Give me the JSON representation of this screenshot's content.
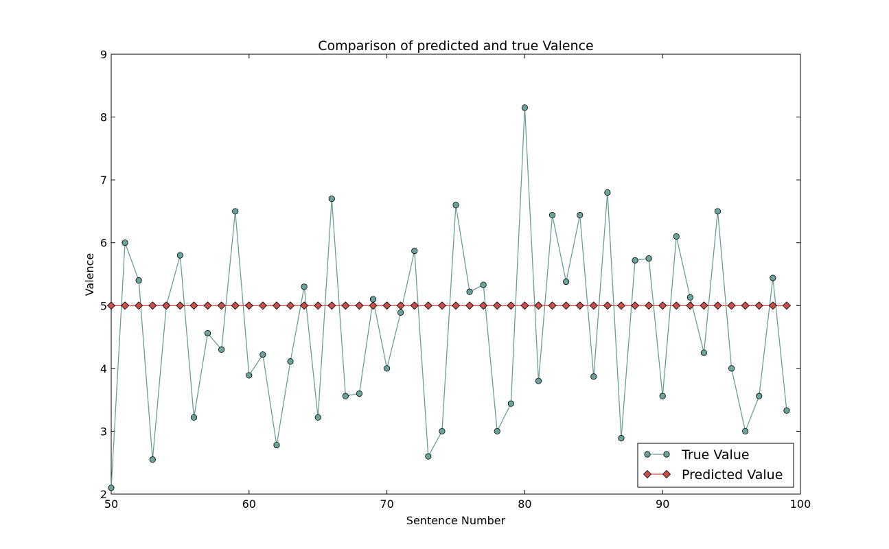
{
  "chart_data": {
    "type": "line",
    "title": "Comparison of predicted and true Valence",
    "xlabel": "Sentence Number",
    "ylabel": "Valence",
    "xlim": [
      50,
      100
    ],
    "ylim": [
      2,
      9
    ],
    "xticks": [
      "50",
      "60",
      "70",
      "80",
      "90",
      "100"
    ],
    "yticks": [
      "2",
      "3",
      "4",
      "5",
      "6",
      "7",
      "8",
      "9"
    ],
    "grid": false,
    "legend_position": "bottom-right",
    "x": [
      50,
      51,
      52,
      53,
      54,
      55,
      56,
      57,
      58,
      59,
      60,
      61,
      62,
      63,
      64,
      65,
      66,
      67,
      68,
      69,
      70,
      71,
      72,
      73,
      74,
      75,
      76,
      77,
      78,
      79,
      80,
      81,
      82,
      83,
      84,
      85,
      86,
      87,
      88,
      89,
      90,
      91,
      92,
      93,
      94,
      95,
      96,
      97,
      98,
      99
    ],
    "series": [
      {
        "name": "True Value",
        "marker": "circle",
        "color": "#6a9e95",
        "marker_color": "#6aa39a",
        "values": [
          2.1,
          6.0,
          5.4,
          2.55,
          5.0,
          5.8,
          3.22,
          4.56,
          4.3,
          6.5,
          3.89,
          4.22,
          2.78,
          4.11,
          5.3,
          3.22,
          6.7,
          3.56,
          3.6,
          5.1,
          4.0,
          4.89,
          5.87,
          2.6,
          3.0,
          6.6,
          5.22,
          5.33,
          3.0,
          3.44,
          8.15,
          3.8,
          6.44,
          5.38,
          6.44,
          3.87,
          6.8,
          2.89,
          5.72,
          5.75,
          3.56,
          6.1,
          5.13,
          4.25,
          6.5,
          4.0,
          3.0,
          3.56,
          5.44,
          3.33
        ]
      },
      {
        "name": "Predicted Value",
        "marker": "diamond",
        "color": "#d9443c",
        "marker_color": "#c9504a",
        "values": [
          5.0,
          5.0,
          5.0,
          5.0,
          5.0,
          5.0,
          5.0,
          5.0,
          5.0,
          5.0,
          5.0,
          5.0,
          5.0,
          5.0,
          5.0,
          5.0,
          5.0,
          5.0,
          5.0,
          5.0,
          5.0,
          5.0,
          5.0,
          5.0,
          5.0,
          5.0,
          5.0,
          5.0,
          5.0,
          5.0,
          5.0,
          5.0,
          5.0,
          5.0,
          5.0,
          5.0,
          5.0,
          5.0,
          5.0,
          5.0,
          5.0,
          5.0,
          5.0,
          5.0,
          5.0,
          5.0,
          5.0,
          5.0,
          5.0,
          5.0
        ]
      }
    ]
  }
}
